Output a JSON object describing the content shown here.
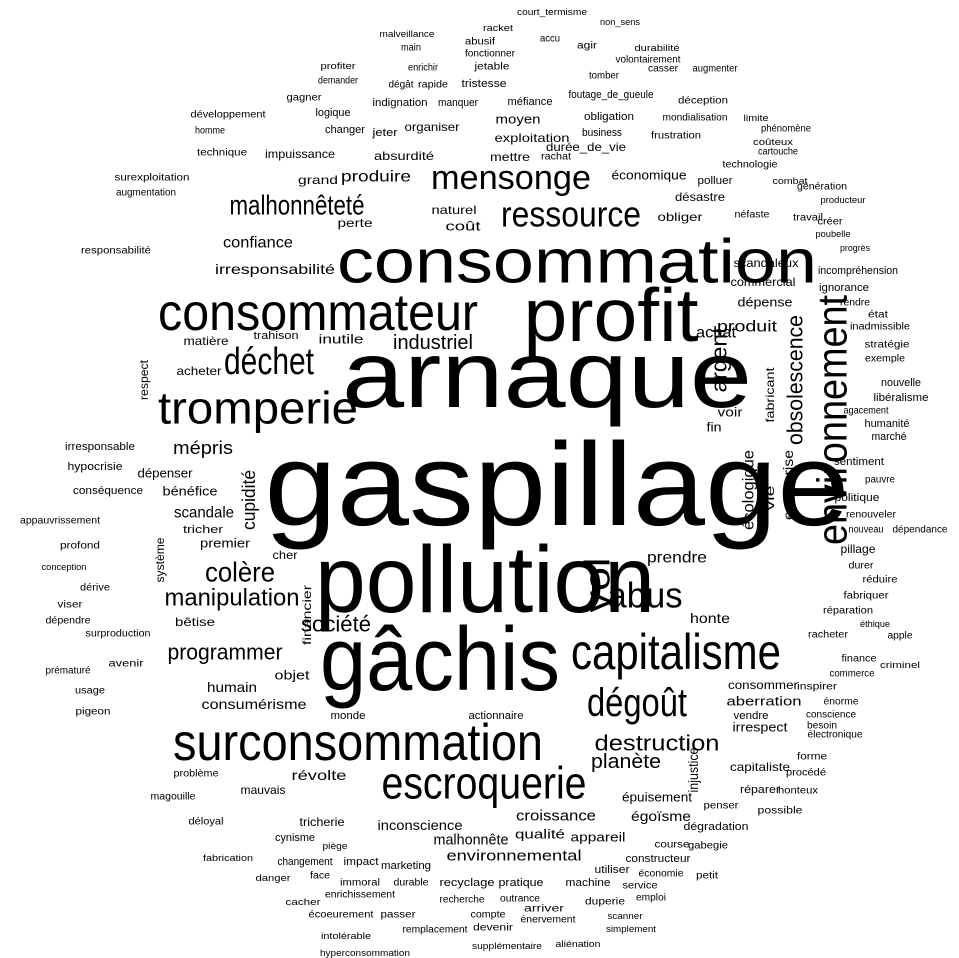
{
  "words": [
    "gaspillage",
    "pollution",
    "arnaque",
    "gâchis",
    "consommation",
    "profit",
    "consommateur",
    "surconsommation",
    "capitalisme",
    "escroquerie",
    "tromperie",
    "déchet",
    "ressource",
    "mensonge",
    "malhonnêteté",
    "environnement",
    "vol",
    "abus",
    "dégoût",
    "colère",
    "manipulation",
    "société",
    "programmer",
    "destruction",
    "planète",
    "obsolescence",
    "argent",
    "industriel",
    "mépris",
    "produire",
    "confiance",
    "irresponsabilité",
    "cupidité",
    "écologique",
    "entreprise",
    "produit",
    "achat",
    "scandale",
    "bénéfice",
    "dépenser",
    "humain",
    "consumérisme",
    "premier",
    "révolte",
    "malhonnête",
    "inconscience",
    "croissance",
    "qualité",
    "environnemental",
    "appareil",
    "égoïsme",
    "épuisement",
    "aberration",
    "consommer",
    "irrespect",
    "capitaliste",
    "injustice",
    "honte",
    "prendre",
    "dépense",
    "commercial",
    "scandaleux",
    "obliger",
    "économique",
    "désastre",
    "exploitation",
    "durée_de_vie",
    "moyen",
    "mettre",
    "absurdité",
    "organiser",
    "impuissance",
    "grand",
    "naturel",
    "perte",
    "coût",
    "inutile",
    "trahison",
    "matière",
    "acheter",
    "respect",
    "fabricant",
    "voir",
    "fin",
    "vie",
    "objet",
    "financier",
    "bêtise",
    "cher",
    "système",
    "tricher",
    "conséquence",
    "hypocrisie",
    "irresponsable",
    "mauvais",
    "tricherie",
    "cynisme",
    "marketing",
    "recyclage",
    "pratique",
    "machine",
    "constructeur",
    "dégradation",
    "monde",
    "actionnaire",
    "vendre",
    "pillage",
    "politique",
    "sentiment",
    "marché",
    "humanité",
    "nouvelle",
    "libéralisme",
    "incompréhension",
    "ignorance",
    "technologie",
    "déception",
    "méfiance",
    "tristesse",
    "indignation",
    "logique",
    "changer",
    "jeter",
    "manquer",
    "obligation",
    "business",
    "foutage_de_gueule",
    "frustration",
    "mondialisation",
    "rachat",
    "polluer",
    "néfaste",
    "technique",
    "homme",
    "développement",
    "responsabilité",
    "augmentation",
    "surexploitation",
    "appauvrissement",
    "profond",
    "conception",
    "dérive",
    "viser",
    "dépendre",
    "surproduction",
    "avenir",
    "prématuré",
    "usage",
    "pigeon",
    "problème",
    "magouille",
    "déloyal",
    "fabrication",
    "danger",
    "cacher",
    "écoeurement",
    "intolérable",
    "hyperconsommation",
    "remplacement",
    "supplémentaire",
    "aliénation",
    "simplement",
    "arriver",
    "énervement",
    "scanner",
    "devenir",
    "compte",
    "passer",
    "recherche",
    "enrichissement",
    "immoral",
    "durable",
    "face",
    "piège",
    "impact",
    "changement",
    "outrance",
    "duperie",
    "emploi",
    "service",
    "petit",
    "économie",
    "utiliser",
    "gabegie",
    "course",
    "possible",
    "penser",
    "honteux",
    "réparer",
    "procédé",
    "forme",
    "électronique",
    "conscience",
    "énorme",
    "besoin",
    "inspirer",
    "commerce",
    "criminel",
    "finance",
    "apple",
    "éthique",
    "racheter",
    "réparation",
    "fabriquer",
    "réduire",
    "durer",
    "renouveler",
    "pauvre",
    "nouveau",
    "dépendance",
    "état",
    "rendre",
    "inadmissible",
    "stratégie",
    "exemple",
    "agacement",
    "progrès",
    "poubelle",
    "créer",
    "producteur",
    "génération",
    "travail",
    "combat",
    "cartouche",
    "coûteux",
    "phénomène",
    "limite",
    "augmenter",
    "durabilité",
    "volontairement",
    "casser",
    "tomber",
    "agir",
    "court_termisme",
    "non_sens",
    "racket",
    "malveillance",
    "main",
    "enrichir",
    "abusif",
    "fonctionner",
    "jetable",
    "accu",
    "profiter",
    "gagner",
    "demander",
    "rapide",
    "dégât"
  ]
}
